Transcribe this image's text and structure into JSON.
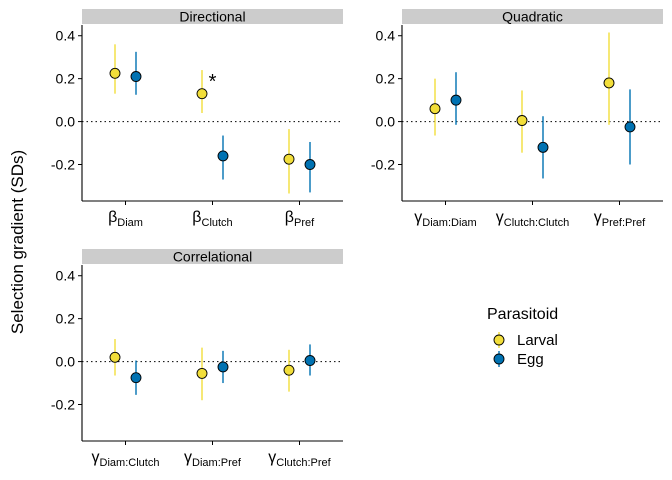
{
  "figure": {
    "ylabel": "Selection gradient (SDs)",
    "legend": {
      "title": "Parasitoid",
      "placement": "bottom-right",
      "entries": [
        {
          "name": "Larval",
          "fill": "#F2DE3A",
          "line": "#F2DE3A"
        },
        {
          "name": "Egg",
          "fill": "#0072B2",
          "line": "#0072B2"
        }
      ]
    }
  },
  "chart_data": [
    {
      "type": "scatter",
      "title": "Directional",
      "ylim": [
        -0.37,
        0.45
      ],
      "yticks": [
        -0.2,
        0.0,
        0.2,
        0.4
      ],
      "ytick_labels": [
        "-0.2",
        "0.0",
        "0.2",
        "0.4"
      ],
      "reference_line": 0,
      "categories": [
        {
          "sym": "β",
          "sub": "Diam"
        },
        {
          "sym": "β",
          "sub": "Clutch"
        },
        {
          "sym": "β",
          "sub": "Pref"
        }
      ],
      "annotations": [
        {
          "category_index": 1,
          "text": "*"
        }
      ],
      "series": [
        {
          "name": "Larval",
          "points": [
            {
              "y": 0.225,
              "lo": 0.13,
              "hi": 0.36
            },
            {
              "y": 0.13,
              "lo": 0.04,
              "hi": 0.24
            },
            {
              "y": -0.175,
              "lo": -0.335,
              "hi": -0.035
            }
          ]
        },
        {
          "name": "Egg",
          "points": [
            {
              "y": 0.21,
              "lo": 0.125,
              "hi": 0.325
            },
            {
              "y": -0.16,
              "lo": -0.27,
              "hi": -0.065
            },
            {
              "y": -0.2,
              "lo": -0.33,
              "hi": -0.095
            }
          ]
        }
      ]
    },
    {
      "type": "scatter",
      "title": "Quadratic",
      "ylim": [
        -0.37,
        0.45
      ],
      "yticks": [
        -0.2,
        0.0,
        0.2,
        0.4
      ],
      "ytick_labels": [
        "-0.2",
        "0.0",
        "0.2",
        "0.4"
      ],
      "reference_line": 0,
      "categories": [
        {
          "sym": "γ",
          "sub": "Diam:Diam"
        },
        {
          "sym": "γ",
          "sub": "Clutch:Clutch"
        },
        {
          "sym": "γ",
          "sub": "Pref:Pref"
        }
      ],
      "annotations": [],
      "series": [
        {
          "name": "Larval",
          "points": [
            {
              "y": 0.06,
              "lo": -0.065,
              "hi": 0.2
            },
            {
              "y": 0.005,
              "lo": -0.145,
              "hi": 0.145
            },
            {
              "y": 0.18,
              "lo": -0.015,
              "hi": 0.415
            }
          ]
        },
        {
          "name": "Egg",
          "points": [
            {
              "y": 0.1,
              "lo": -0.015,
              "hi": 0.23
            },
            {
              "y": -0.12,
              "lo": -0.265,
              "hi": 0.025
            },
            {
              "y": -0.025,
              "lo": -0.2,
              "hi": 0.15
            }
          ]
        }
      ]
    },
    {
      "type": "scatter",
      "title": "Correlational",
      "ylim": [
        -0.37,
        0.45
      ],
      "yticks": [
        -0.2,
        0.0,
        0.2,
        0.4
      ],
      "ytick_labels": [
        "-0.2",
        "0.0",
        "0.2",
        "0.4"
      ],
      "reference_line": 0,
      "categories": [
        {
          "sym": "γ",
          "sub": "Diam:Clutch"
        },
        {
          "sym": "γ",
          "sub": "Diam:Pref"
        },
        {
          "sym": "γ",
          "sub": "Clutch:Pref"
        }
      ],
      "annotations": [],
      "series": [
        {
          "name": "Larval",
          "points": [
            {
              "y": 0.02,
              "lo": -0.065,
              "hi": 0.105
            },
            {
              "y": -0.055,
              "lo": -0.18,
              "hi": 0.065
            },
            {
              "y": -0.04,
              "lo": -0.14,
              "hi": 0.055
            }
          ]
        },
        {
          "name": "Egg",
          "points": [
            {
              "y": -0.075,
              "lo": -0.155,
              "hi": 0.005
            },
            {
              "y": -0.025,
              "lo": -0.1,
              "hi": 0.05
            },
            {
              "y": 0.005,
              "lo": -0.065,
              "hi": 0.08
            }
          ]
        }
      ]
    }
  ]
}
